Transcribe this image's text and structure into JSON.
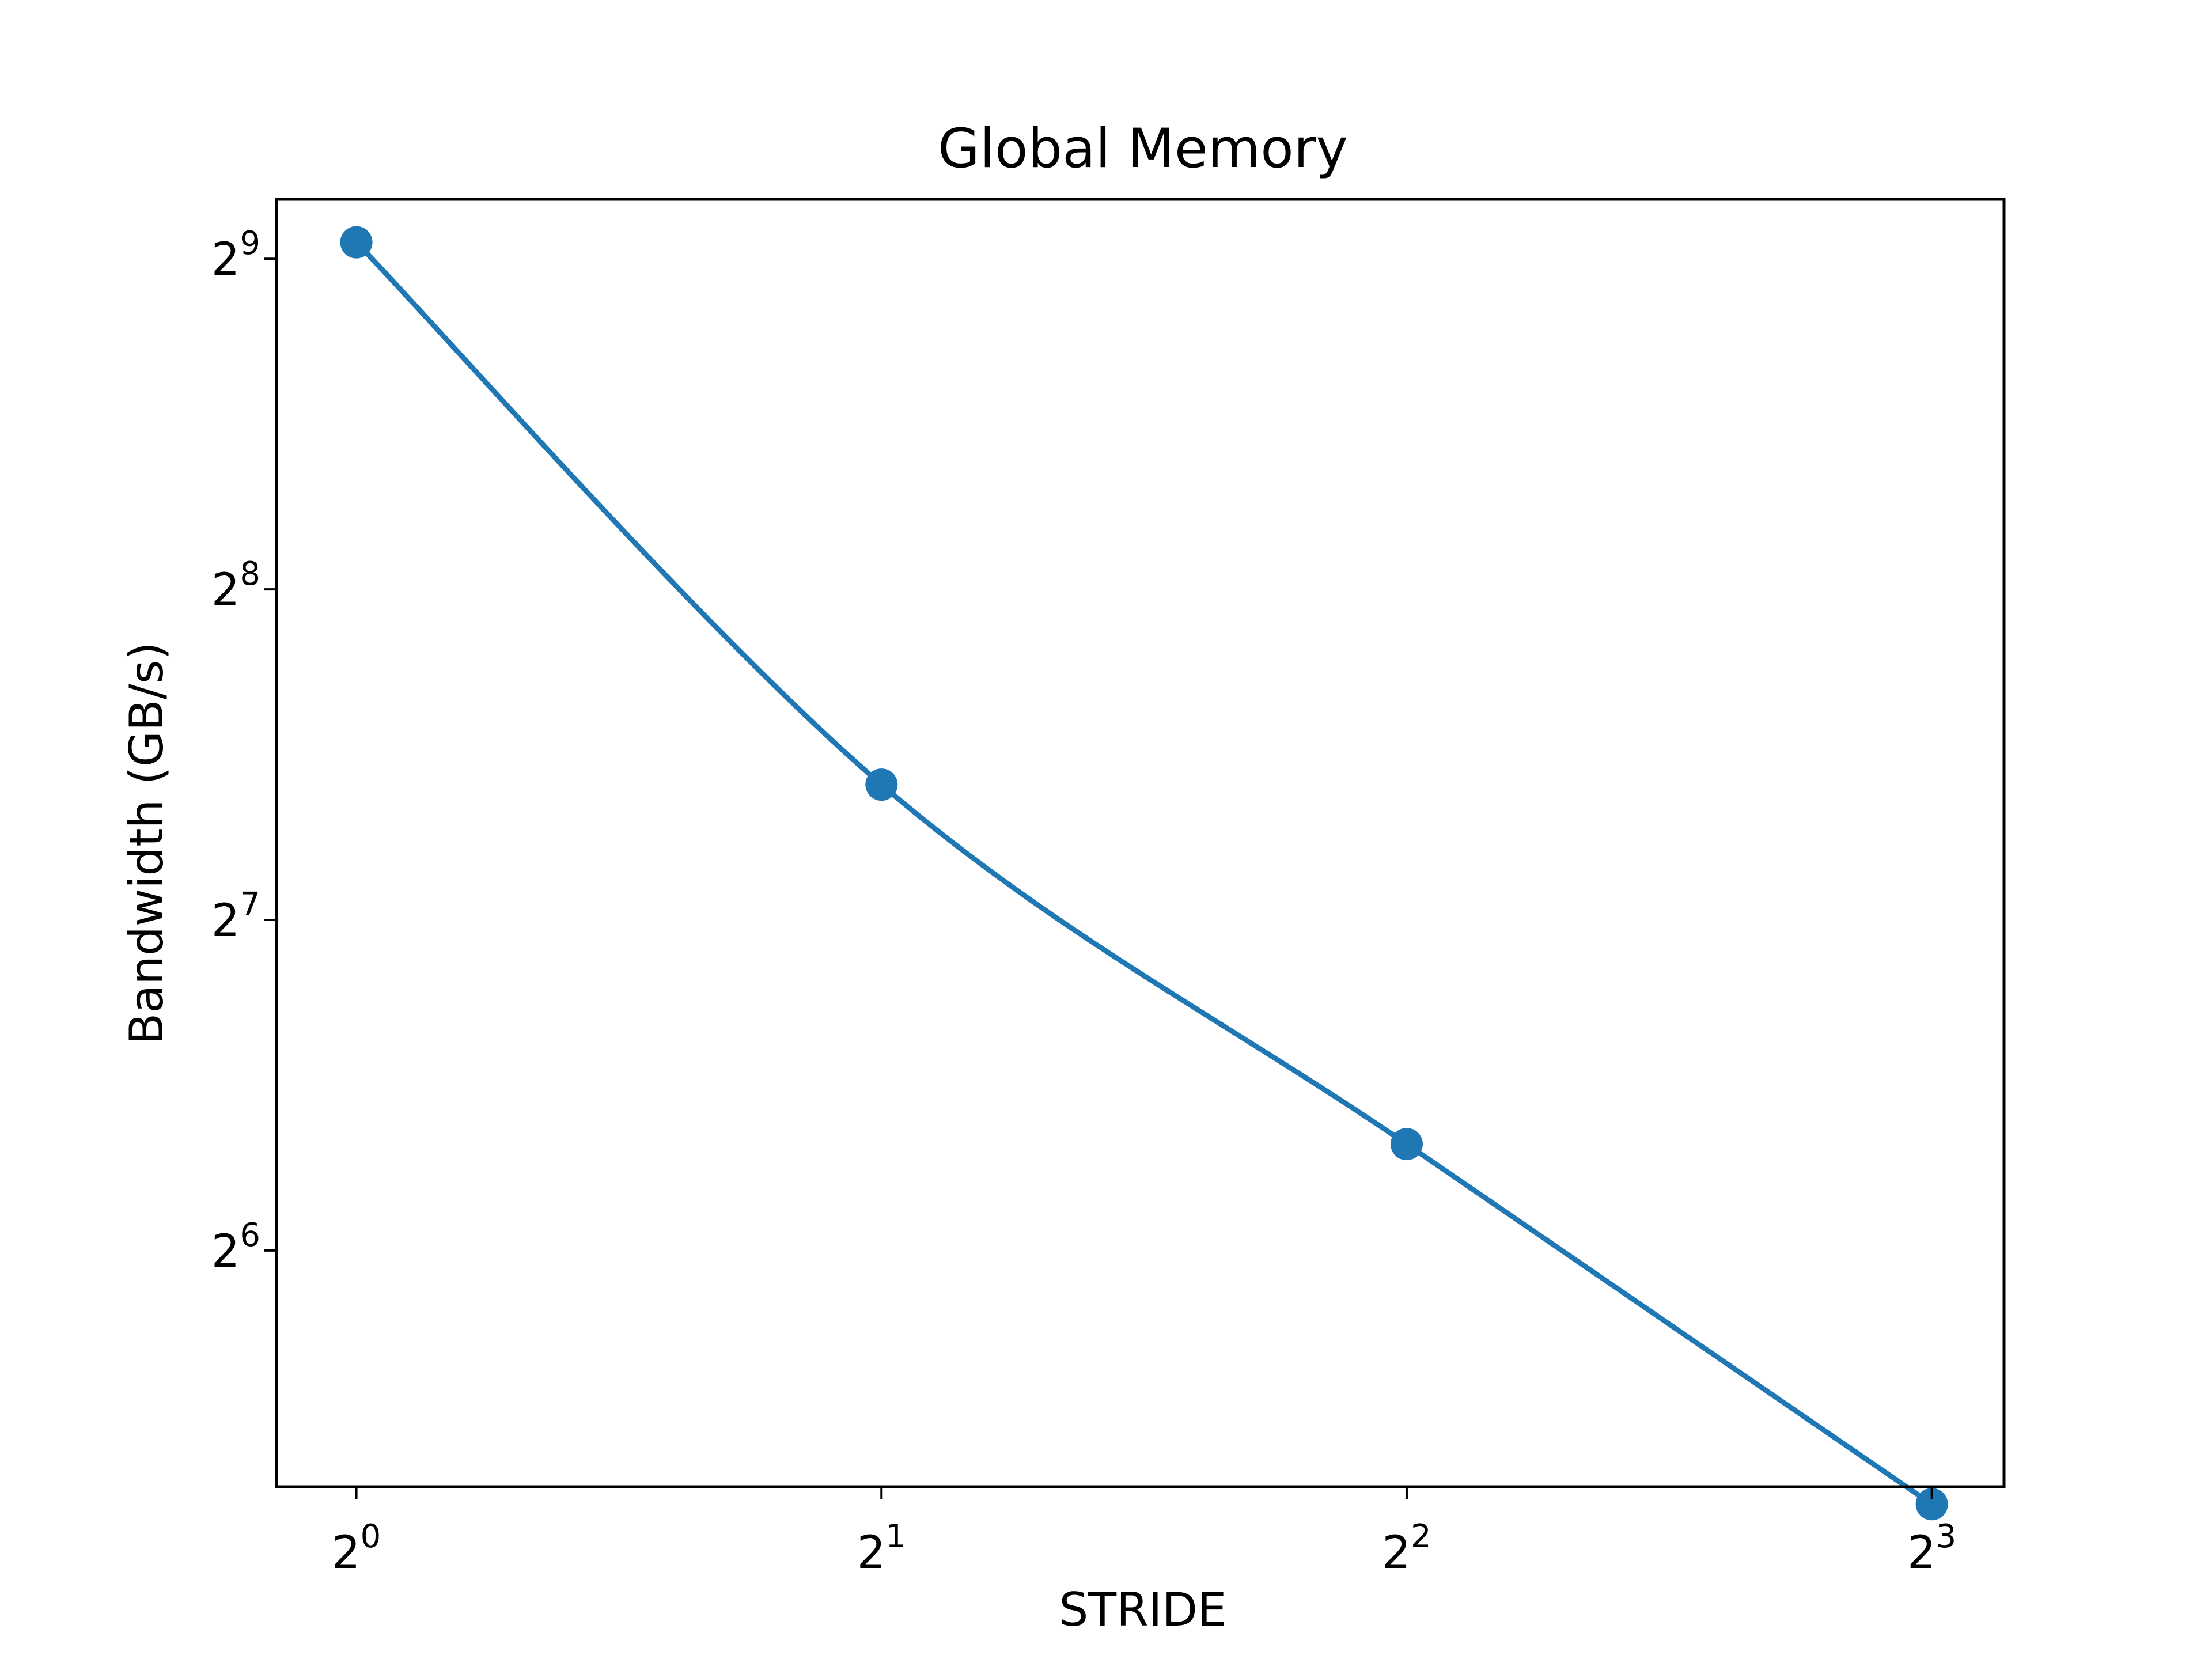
{
  "chart_data": {
    "type": "line",
    "title": "Global Memory",
    "xlabel": "STRIDE",
    "ylabel": "Bandwidth (GB/s)",
    "x_scale": "log2",
    "y_scale": "log2",
    "xlim": [
      0.9,
      8.8
    ],
    "ylim": [
      39,
      580
    ],
    "x_ticks": [
      {
        "base": "2",
        "exp": "0",
        "value": 1
      },
      {
        "base": "2",
        "exp": "1",
        "value": 2
      },
      {
        "base": "2",
        "exp": "2",
        "value": 4
      },
      {
        "base": "2",
        "exp": "3",
        "value": 8
      }
    ],
    "y_ticks": [
      {
        "base": "2",
        "exp": "6",
        "value": 64
      },
      {
        "base": "2",
        "exp": "7",
        "value": 128
      },
      {
        "base": "2",
        "exp": "8",
        "value": 256
      },
      {
        "base": "2",
        "exp": "9",
        "value": 512
      }
    ],
    "grid": false,
    "series": [
      {
        "color": "#1f77b4",
        "marker": "circle",
        "smoothed": true,
        "x": [
          1,
          2,
          4,
          8
        ],
        "y": [
          530,
          170,
          80,
          37.6
        ]
      }
    ]
  }
}
